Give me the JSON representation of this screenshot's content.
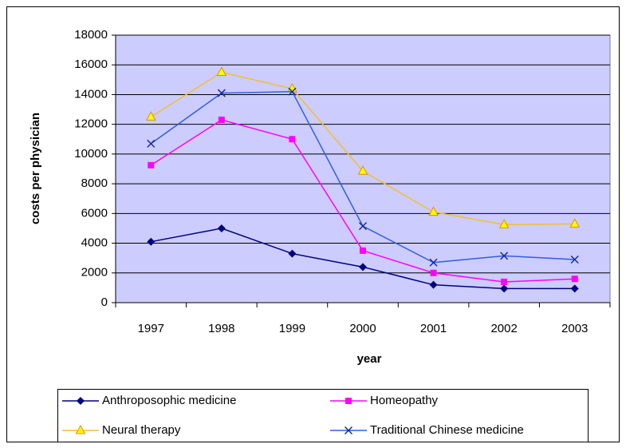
{
  "chart_data": {
    "type": "line",
    "xlabel": "year",
    "ylabel": "costs per physician",
    "categories": [
      "1997",
      "1998",
      "1999",
      "2000",
      "2001",
      "2002",
      "2003"
    ],
    "series": [
      {
        "name": "Anthroposophic medicine",
        "color": "#000080",
        "marker": "diamond",
        "values": [
          4100,
          5000,
          3300,
          2400,
          1200,
          950,
          950
        ]
      },
      {
        "name": "Homeopathy",
        "color": "#ff00ff",
        "marker": "square",
        "values": [
          9250,
          12300,
          11000,
          3500,
          2000,
          1400,
          1600
        ]
      },
      {
        "name": "Neural therapy",
        "color": "#f0c030",
        "marker": "triangle",
        "values": [
          12500,
          15500,
          14400,
          8850,
          6100,
          5250,
          5300
        ]
      },
      {
        "name": "Traditional Chinese medicine",
        "color": "#2f5fe0",
        "marker": "x",
        "values": [
          10700,
          14100,
          14200,
          5150,
          2700,
          3150,
          2900
        ]
      }
    ],
    "ylim": [
      0,
      18000
    ],
    "yticks": [
      0,
      2000,
      4000,
      6000,
      8000,
      10000,
      12000,
      14000,
      16000,
      18000
    ],
    "grid": true,
    "legend": "bottom"
  }
}
